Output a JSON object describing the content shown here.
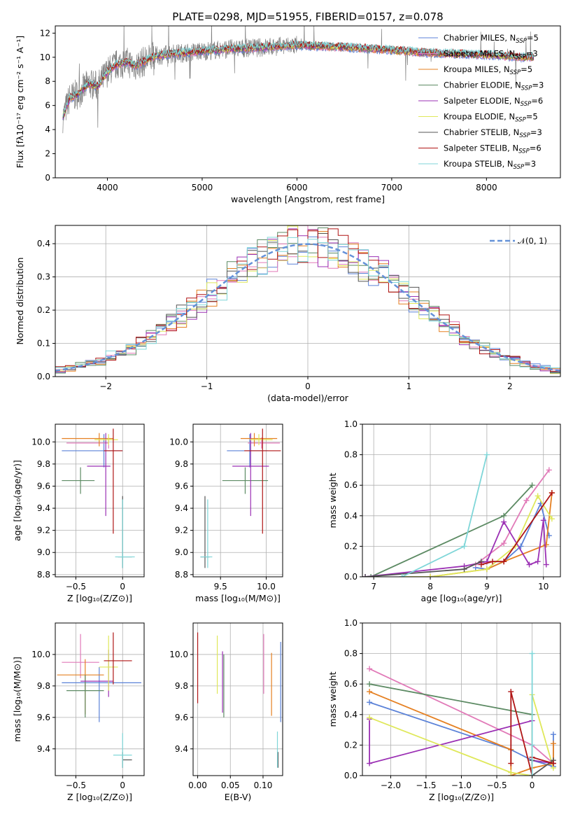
{
  "colors": {
    "Chabrier MILES": "#5b82d8",
    "Salpeter MILES": "#e17ab8",
    "Kroupa MILES": "#e58022",
    "Chabrier ELODIE": "#5c8a63",
    "Salpeter ELODIE": "#9b30b4",
    "Kroupa ELODIE": "#dfe85a",
    "Chabrier STELIB": "#555555",
    "Salpeter STELIB": "#b01515",
    "Kroupa STELIB": "#7fd6d8",
    "gauss": "#6491d8"
  },
  "chart_data": [
    {
      "id": "spectrum",
      "type": "line",
      "title": "PLATE=0298, MJD=51955, FIBERID=0157, z=0.078",
      "xlabel": "wavelength [Angstrom, rest frame]",
      "ylabel": "Flux [fλ10⁻¹⁷ erg cm⁻² s⁻¹ A⁻¹]",
      "xlim": [
        3450,
        8780
      ],
      "ylim": [
        0,
        12.6
      ],
      "xticks": [
        4000,
        5000,
        6000,
        7000,
        8000
      ],
      "yticks": [
        0,
        2,
        4,
        6,
        8,
        10,
        12
      ],
      "continuum": {
        "x": [
          3530,
          3600,
          3700,
          3800,
          3900,
          4000,
          4100,
          4200,
          4300,
          4500,
          4700,
          5000,
          5300,
          5600,
          6000,
          6300,
          6600,
          7000,
          7300,
          7600,
          8000,
          8400,
          8500
        ],
        "y": [
          5.0,
          6.6,
          7.0,
          7.8,
          7.6,
          8.8,
          9.4,
          9.6,
          9.3,
          10.1,
          10.3,
          10.5,
          10.7,
          10.8,
          11.0,
          10.9,
          10.8,
          10.6,
          10.4,
          10.3,
          10.2,
          10.0,
          10.0
        ]
      },
      "legend": [
        {
          "label": "Chabrier MILES, N",
          "sub": "SSP",
          "suffix": "=5"
        },
        {
          "label": "Salpeter MILES, N",
          "sub": "SSP",
          "suffix": "=3"
        },
        {
          "label": "Kroupa MILES, N",
          "sub": "SSP",
          "suffix": "=5"
        },
        {
          "label": "Chabrier ELODIE, N",
          "sub": "SSP",
          "suffix": "=3"
        },
        {
          "label": "Salpeter ELODIE, N",
          "sub": "SSP",
          "suffix": "=6"
        },
        {
          "label": "Kroupa ELODIE, N",
          "sub": "SSP",
          "suffix": "=5"
        },
        {
          "label": "Chabrier STELIB, N",
          "sub": "SSP",
          "suffix": "=3"
        },
        {
          "label": "Salpeter STELIB, N",
          "sub": "SSP",
          "suffix": "=6"
        },
        {
          "label": "Kroupa STELIB, N",
          "sub": "SSP",
          "suffix": "=3"
        }
      ],
      "legend_location": "lower right"
    },
    {
      "id": "residuals",
      "type": "step",
      "xlabel": "(data-model)/error",
      "ylabel": "Normed distribution",
      "xlim": [
        -2.5,
        2.5
      ],
      "ylim": [
        0,
        0.455
      ],
      "xticks": [
        -2,
        -1,
        0,
        1,
        2
      ],
      "yticks": [
        0.0,
        0.1,
        0.2,
        0.3,
        0.4
      ],
      "bin_width": 0.1,
      "legend": "𝒩(0, 1)",
      "legend_location": "upper right",
      "gaussian": {
        "mu": 0,
        "sigma": 1
      }
    },
    {
      "id": "age_vs_Z",
      "type": "errorbar",
      "xlabel": "Z [log₁₀(Z/Z⊙)]",
      "ylabel": "age  [log₁₀(age/yr)]",
      "xlim": [
        -0.72,
        0.23
      ],
      "ylim": [
        8.78,
        10.16
      ],
      "xticks": [
        -0.5,
        0.0
      ],
      "yticks": [
        8.8,
        9.0,
        9.2,
        9.4,
        9.6,
        9.8,
        10.0
      ],
      "points": [
        {
          "model": "Chabrier MILES",
          "x": -0.2,
          "y": 9.92,
          "xerr": [
            0.45,
            0.2
          ],
          "yerr": [
            0.15,
            0.15
          ]
        },
        {
          "model": "Salpeter MILES",
          "x": -0.15,
          "y": 9.99,
          "xerr": [
            0.45,
            0.0
          ],
          "yerr": [
            0.05,
            0.05
          ]
        },
        {
          "model": "Kroupa MILES",
          "x": -0.25,
          "y": 10.03,
          "xerr": [
            0.4,
            0.15
          ],
          "yerr": [
            0.07,
            0.05
          ]
        },
        {
          "model": "Chabrier ELODIE",
          "x": -0.45,
          "y": 9.65,
          "xerr": [
            0.2,
            0.15
          ],
          "yerr": [
            0.12,
            0.12
          ]
        },
        {
          "model": "Salpeter ELODIE",
          "x": -0.18,
          "y": 9.78,
          "xerr": [
            0.2,
            0.05
          ],
          "yerr": [
            0.45,
            0.3
          ]
        },
        {
          "model": "Kroupa ELODIE",
          "x": -0.15,
          "y": 10.02,
          "xerr": [
            0.15,
            0.1
          ],
          "yerr": [
            0.05,
            0.05
          ]
        },
        {
          "model": "Chabrier STELIB",
          "x": 0.0,
          "y": 8.96,
          "xerr": [
            0.05,
            0.1
          ],
          "yerr": [
            0.1,
            0.55
          ]
        },
        {
          "model": "Salpeter STELIB",
          "x": -0.1,
          "y": 9.92,
          "xerr": [
            0.1,
            0.1
          ],
          "yerr": [
            0.75,
            0.2
          ]
        },
        {
          "model": "Kroupa STELIB",
          "x": 0.0,
          "y": 8.96,
          "xerr": [
            0.08,
            0.13
          ],
          "yerr": [
            0.1,
            0.52
          ]
        }
      ]
    },
    {
      "id": "age_vs_mass",
      "type": "errorbar",
      "xlabel": "mass [log₁₀(M/M⊙)]",
      "ylabel": "",
      "xlim": [
        9.2,
        10.18
      ],
      "ylim": [
        8.78,
        10.16
      ],
      "xticks": [
        9.5,
        10.0
      ],
      "yticks": [
        8.8,
        9.0,
        9.2,
        9.4,
        9.6,
        9.8,
        10.0
      ],
      "points": [
        {
          "model": "Chabrier MILES",
          "x": 9.82,
          "y": 9.92,
          "xerr": [
            0.25,
            0.2
          ],
          "yerr": [
            0.15,
            0.15
          ]
        },
        {
          "model": "Salpeter MILES",
          "x": 9.95,
          "y": 9.99,
          "xerr": [
            0.15,
            0.2
          ],
          "yerr": [
            0.05,
            0.05
          ]
        },
        {
          "model": "Kroupa MILES",
          "x": 9.87,
          "y": 10.03,
          "xerr": [
            0.15,
            0.25
          ],
          "yerr": [
            0.07,
            0.05
          ]
        },
        {
          "model": "Chabrier ELODIE",
          "x": 9.77,
          "y": 9.65,
          "xerr": [
            0.25,
            0.25
          ],
          "yerr": [
            0.12,
            0.12
          ]
        },
        {
          "model": "Salpeter ELODIE",
          "x": 9.83,
          "y": 9.78,
          "xerr": [
            0.2,
            0.2
          ],
          "yerr": [
            0.45,
            0.3
          ]
        },
        {
          "model": "Kroupa ELODIE",
          "x": 9.92,
          "y": 10.02,
          "xerr": [
            0.1,
            0.15
          ],
          "yerr": [
            0.05,
            0.05
          ]
        },
        {
          "model": "Chabrier STELIB",
          "x": 9.33,
          "y": 8.96,
          "xerr": [
            0.05,
            0.05
          ],
          "yerr": [
            0.1,
            0.55
          ]
        },
        {
          "model": "Salpeter STELIB",
          "x": 9.96,
          "y": 9.92,
          "xerr": [
            0.2,
            0.2
          ],
          "yerr": [
            0.75,
            0.2
          ]
        },
        {
          "model": "Kroupa STELIB",
          "x": 9.36,
          "y": 8.96,
          "xerr": [
            0.08,
            0.05
          ],
          "yerr": [
            0.1,
            0.52
          ]
        }
      ]
    },
    {
      "id": "weight_vs_age",
      "type": "line",
      "xlabel": "age  [log₁₀(age/yr)]",
      "ylabel": "mass weight",
      "xlim": [
        6.8,
        10.3
      ],
      "ylim": [
        0,
        1
      ],
      "xticks": [
        7,
        8,
        9,
        10
      ],
      "yticks": [
        0.0,
        0.2,
        0.4,
        0.6,
        0.8,
        1.0
      ],
      "series": [
        {
          "model": "Chabrier MILES",
          "x": [
            8.8,
            9.0,
            9.3,
            9.6,
            9.95,
            10.1
          ],
          "y": [
            0.06,
            0.05,
            0.1,
            0.2,
            0.48,
            0.27
          ]
        },
        {
          "model": "Salpeter MILES",
          "x": [
            8.8,
            9.3,
            9.7,
            10.1
          ],
          "y": [
            0.08,
            0.22,
            0.5,
            0.7
          ]
        },
        {
          "model": "Kroupa MILES",
          "x": [
            8.0,
            9.0,
            9.3,
            10.05,
            10.15,
            10.15
          ],
          "y": [
            0.0,
            0.05,
            0.1,
            0.21,
            0.55,
            0.55
          ]
        },
        {
          "model": "Chabrier ELODIE",
          "x": [
            6.95,
            9.3,
            9.8
          ],
          "y": [
            0.0,
            0.4,
            0.6
          ]
        },
        {
          "model": "Salpeter ELODIE",
          "x": [
            6.85,
            8.6,
            9.0,
            9.3,
            9.75,
            9.9,
            10.0,
            10.05
          ],
          "y": [
            0.0,
            0.07,
            0.1,
            0.36,
            0.08,
            0.1,
            0.37,
            0.08
          ]
        },
        {
          "model": "Kroupa ELODIE",
          "x": [
            7.5,
            8.0,
            9.0,
            9.5,
            9.9,
            10.15
          ],
          "y": [
            0.0,
            0.0,
            0.05,
            0.2,
            0.53,
            0.38
          ]
        },
        {
          "model": "Chabrier STELIB",
          "x": [
            6.85,
            8.6,
            8.9
          ],
          "y": [
            0.0,
            0.05,
            0.1
          ]
        },
        {
          "model": "Salpeter STELIB",
          "x": [
            8.9,
            9.1,
            9.3,
            10.15
          ],
          "y": [
            0.08,
            0.1,
            0.1,
            0.55
          ]
        },
        {
          "model": "Kroupa STELIB",
          "x": [
            7.5,
            8.6,
            9.0
          ],
          "y": [
            0.0,
            0.2,
            0.8
          ]
        }
      ]
    },
    {
      "id": "mass_vs_Z",
      "type": "errorbar",
      "xlabel": "Z [log₁₀(Z/Z⊙)]",
      "ylabel": "mass [log₁₀(M/M⊙)]",
      "xlim": [
        -0.72,
        0.23
      ],
      "ylim": [
        9.23,
        10.2
      ],
      "xticks": [
        -0.5,
        0.0
      ],
      "yticks": [
        9.4,
        9.6,
        9.8,
        10.0
      ],
      "points": [
        {
          "model": "Chabrier MILES",
          "x": -0.25,
          "y": 9.82,
          "xerr": [
            0.4,
            0.45
          ],
          "yerr": [
            0.25,
            0.1
          ]
        },
        {
          "model": "Salpeter MILES",
          "x": -0.45,
          "y": 9.95,
          "xerr": [
            0.2,
            0.2
          ],
          "yerr": [
            0.1,
            0.18
          ]
        },
        {
          "model": "Kroupa MILES",
          "x": -0.4,
          "y": 9.87,
          "xerr": [
            0.3,
            0.2
          ],
          "yerr": [
            0.25,
            0.1
          ]
        },
        {
          "model": "Chabrier ELODIE",
          "x": -0.4,
          "y": 9.77,
          "xerr": [
            0.2,
            0.2
          ],
          "yerr": [
            0.17,
            0.1
          ]
        },
        {
          "model": "Salpeter ELODIE",
          "x": -0.15,
          "y": 9.83,
          "xerr": [
            0.3,
            0.05
          ],
          "yerr": [
            0.1,
            0.2
          ]
        },
        {
          "model": "Kroupa ELODIE",
          "x": -0.15,
          "y": 9.92,
          "xerr": [
            0.1,
            0.1
          ],
          "yerr": [
            0.15,
            0.2
          ]
        },
        {
          "model": "Chabrier STELIB",
          "x": 0.0,
          "y": 9.33,
          "xerr": [
            0.0,
            0.1
          ],
          "yerr": [
            0.05,
            0.05
          ]
        },
        {
          "model": "Salpeter STELIB",
          "x": -0.1,
          "y": 9.96,
          "xerr": [
            0.1,
            0.2
          ],
          "yerr": [
            0.15,
            0.18
          ]
        },
        {
          "model": "Kroupa STELIB",
          "x": 0.0,
          "y": 9.36,
          "xerr": [
            0.1,
            0.1
          ],
          "yerr": [
            0.08,
            0.14
          ]
        }
      ]
    },
    {
      "id": "mass_vs_ebv",
      "type": "errorbar",
      "xlabel": "E(B-V)",
      "ylabel": "",
      "xlim": [
        -0.007,
        0.13
      ],
      "ylim": [
        9.23,
        10.2
      ],
      "xticks": [
        0.0,
        0.05,
        0.1
      ],
      "yticks": [
        9.4,
        9.6,
        9.8,
        10.0
      ],
      "points": [
        {
          "model": "Chabrier MILES",
          "x": 0.127,
          "y": 9.82,
          "xerr": [
            0,
            0
          ],
          "yerr": [
            0.25,
            0.26
          ]
        },
        {
          "model": "Salpeter MILES",
          "x": 0.101,
          "y": 9.95,
          "xerr": [
            0,
            0
          ],
          "yerr": [
            0.2,
            0.18
          ]
        },
        {
          "model": "Kroupa MILES",
          "x": 0.113,
          "y": 9.87,
          "xerr": [
            0,
            0
          ],
          "yerr": [
            0.26,
            0.14
          ]
        },
        {
          "model": "Chabrier ELODIE",
          "x": 0.04,
          "y": 9.77,
          "xerr": [
            0,
            0
          ],
          "yerr": [
            0.17,
            0.23
          ]
        },
        {
          "model": "Salpeter ELODIE",
          "x": 0.038,
          "y": 9.83,
          "xerr": [
            0,
            0
          ],
          "yerr": [
            0.2,
            0.19
          ]
        },
        {
          "model": "Kroupa ELODIE",
          "x": 0.03,
          "y": 9.92,
          "xerr": [
            0,
            0
          ],
          "yerr": [
            0.17,
            0.2
          ]
        },
        {
          "model": "Chabrier STELIB",
          "x": 0.123,
          "y": 9.33,
          "xerr": [
            0,
            0
          ],
          "yerr": [
            0.05,
            0.05
          ]
        },
        {
          "model": "Salpeter STELIB",
          "x": 0.0,
          "y": 9.96,
          "xerr": [
            0,
            0
          ],
          "yerr": [
            0.27,
            0.18
          ]
        },
        {
          "model": "Kroupa STELIB",
          "x": 0.122,
          "y": 9.36,
          "xerr": [
            0,
            0
          ],
          "yerr": [
            0.08,
            0.15
          ]
        }
      ]
    },
    {
      "id": "weight_vs_Z",
      "type": "line",
      "xlabel": "Z [log₁₀(Z/Z⊙)]",
      "ylabel": "mass weight",
      "xlim": [
        -2.4,
        0.4
      ],
      "ylim": [
        0,
        1
      ],
      "xticks": [
        -2.0,
        -1.5,
        -1.0,
        -0.5,
        0.0
      ],
      "yticks": [
        0.0,
        0.2,
        0.4,
        0.6,
        0.8,
        1.0
      ],
      "series": [
        {
          "model": "Chabrier MILES",
          "x": [
            -2.3,
            -0.3,
            0.0,
            0.3,
            0.3
          ],
          "y": [
            0.48,
            0.17,
            0.1,
            0.06,
            0.27
          ]
        },
        {
          "model": "Salpeter MILES",
          "x": [
            -2.3,
            0.0,
            0.3
          ],
          "y": [
            0.7,
            0.2,
            0.08
          ]
        },
        {
          "model": "Kroupa MILES",
          "x": [
            -2.3,
            -0.3,
            -0.3,
            0.0,
            0.3,
            0.3
          ],
          "y": [
            0.55,
            0.17,
            0.0,
            0.05,
            0.08,
            0.21
          ]
        },
        {
          "model": "Chabrier ELODIE",
          "x": [
            -2.3,
            0.0
          ],
          "y": [
            0.6,
            0.4
          ]
        },
        {
          "model": "Salpeter ELODIE",
          "x": [
            -2.3,
            -2.3,
            0.0,
            0.0,
            0.3
          ],
          "y": [
            0.37,
            0.08,
            0.36,
            0.1,
            0.08
          ]
        },
        {
          "model": "Kroupa ELODIE",
          "x": [
            -2.3,
            -0.3,
            0.0,
            0.0,
            0.3
          ],
          "y": [
            0.38,
            0.02,
            0.0,
            0.53,
            0.05
          ]
        },
        {
          "model": "Chabrier STELIB",
          "x": [
            0.0,
            0.0,
            0.3
          ],
          "y": [
            0.1,
            0.0,
            0.1
          ]
        },
        {
          "model": "Salpeter STELIB",
          "x": [
            -0.3,
            -0.3,
            0.0,
            0.0,
            0.3
          ],
          "y": [
            0.08,
            0.55,
            0.0,
            0.12,
            0.08
          ]
        },
        {
          "model": "Kroupa STELIB",
          "x": [
            0.0,
            0.0,
            0.0
          ],
          "y": [
            0.0,
            0.8,
            0.2
          ]
        }
      ]
    }
  ]
}
